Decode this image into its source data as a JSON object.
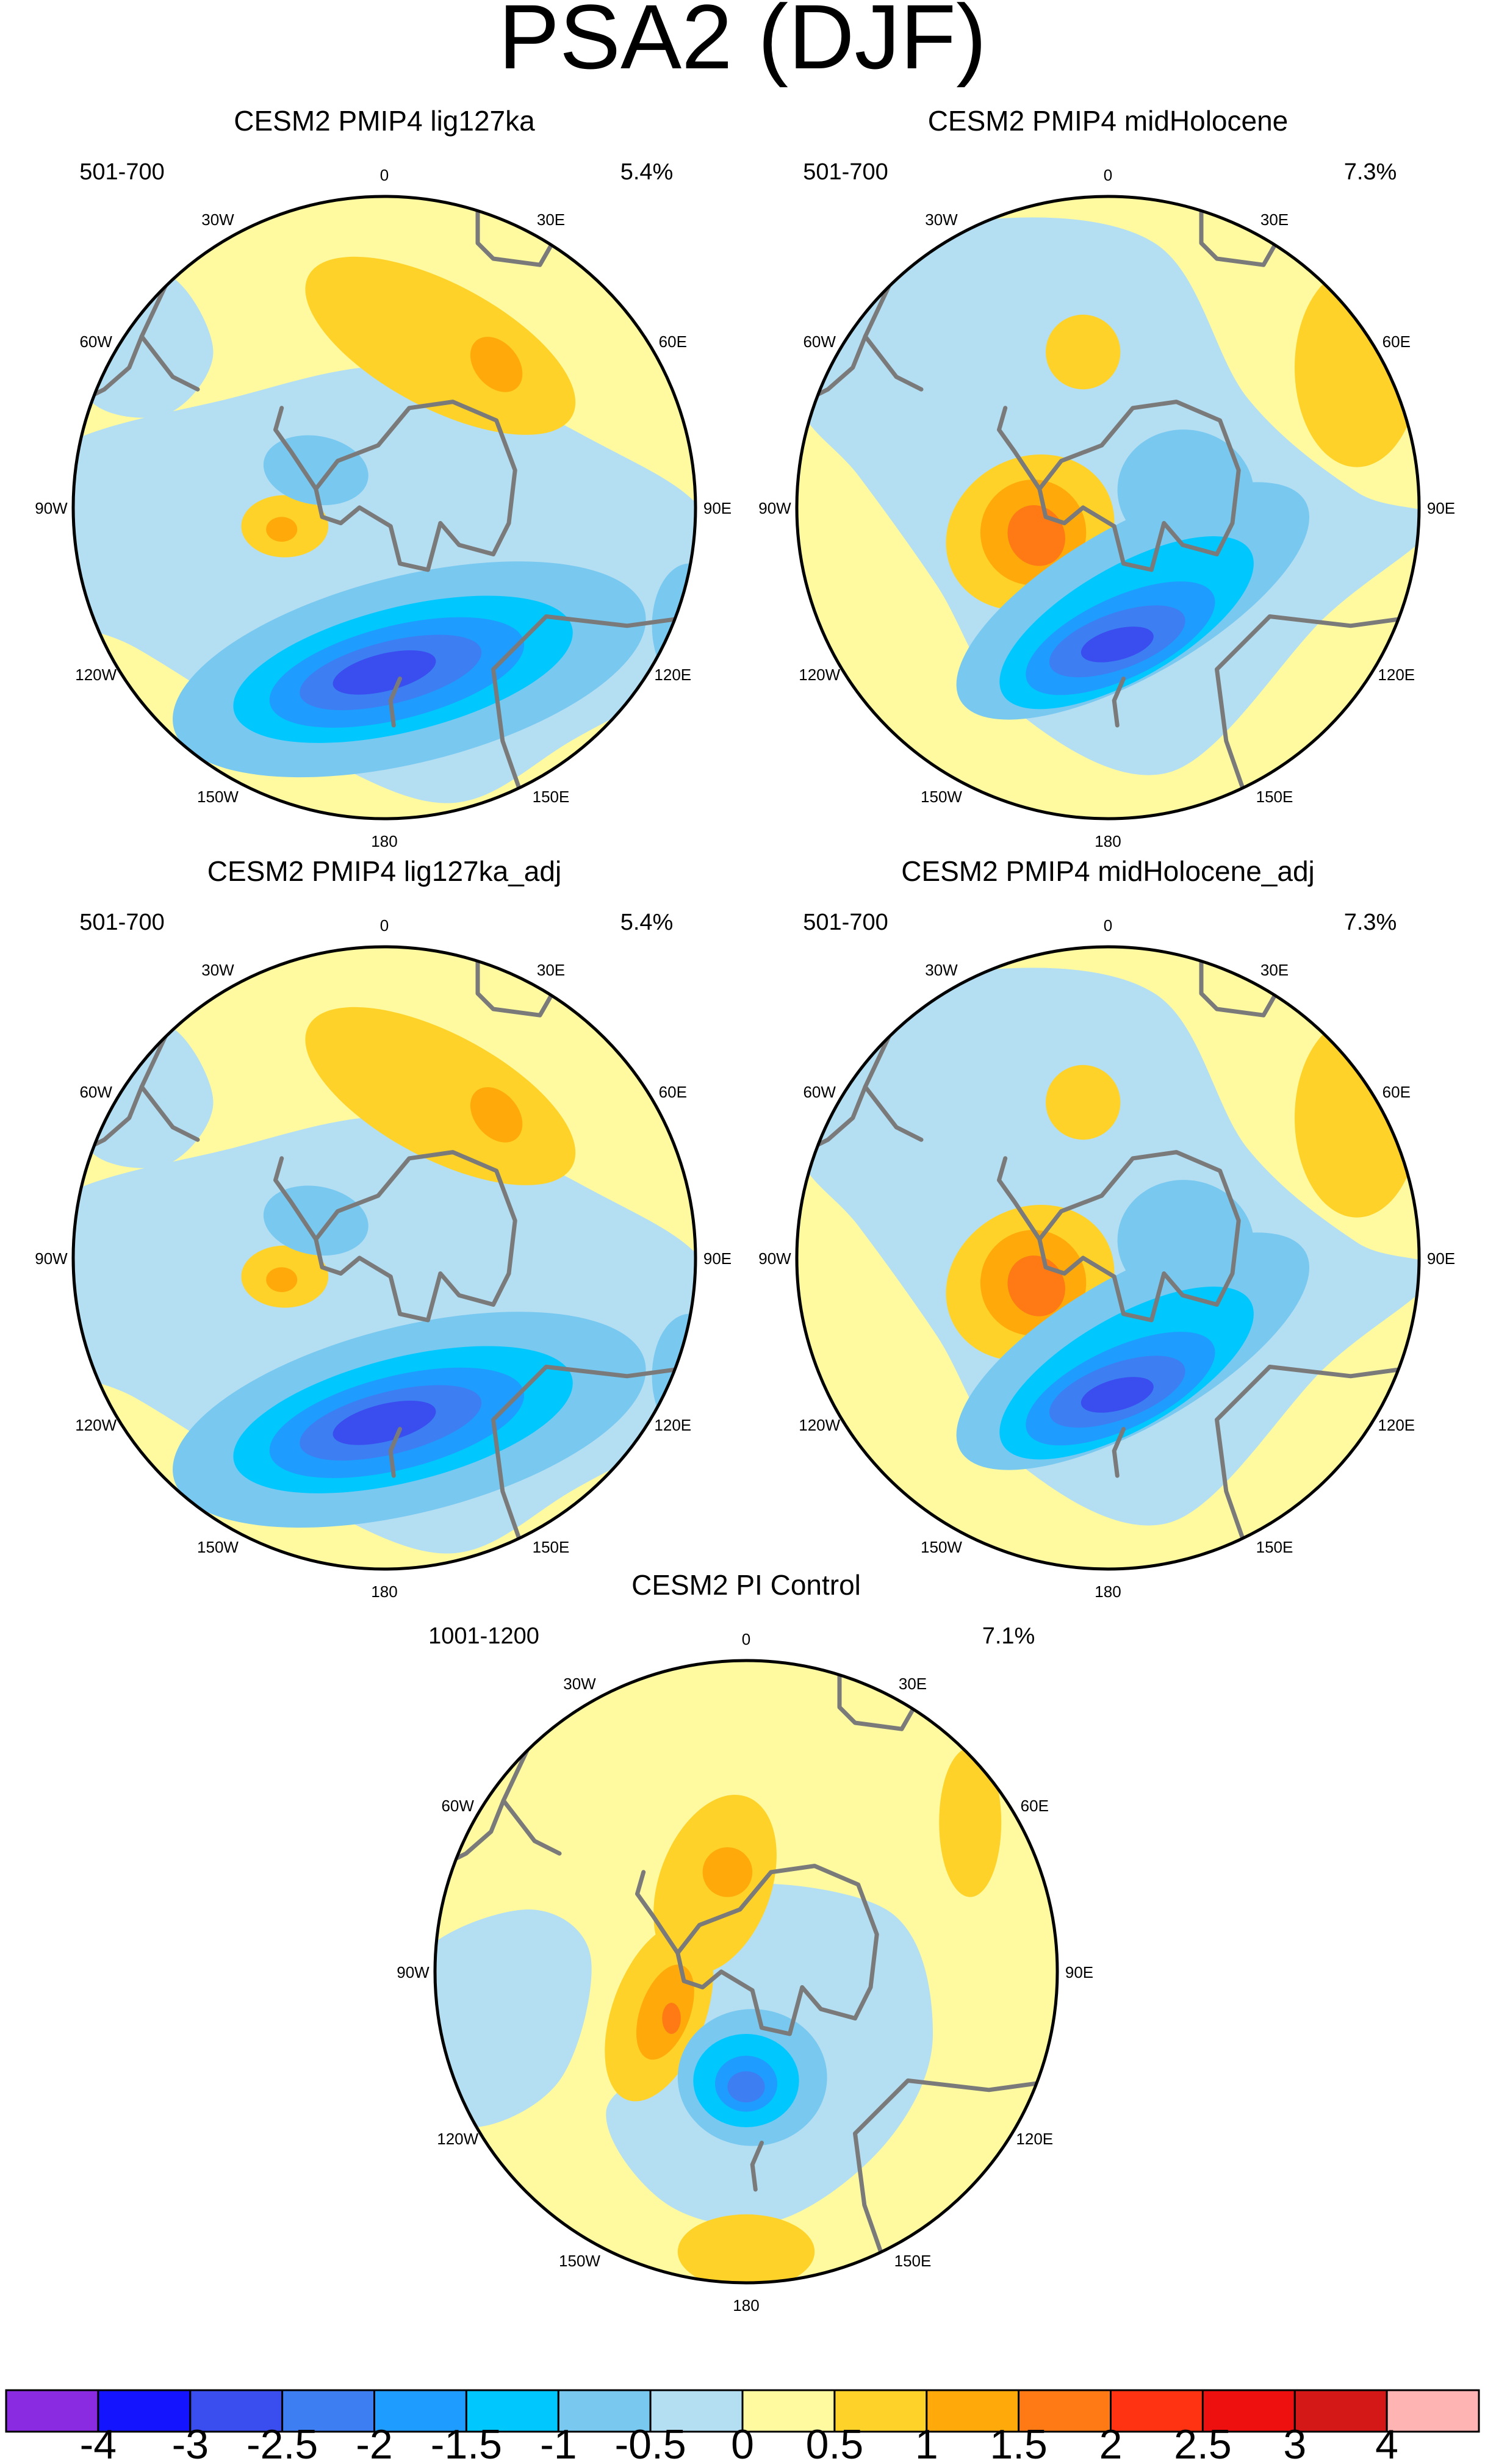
{
  "figure": {
    "title": "PSA2 (DJF)"
  },
  "palette": {
    "coast": "#7a7a7a",
    "colors": [
      "#8a2be2",
      "#1414ff",
      "#3a4ef0",
      "#3d7ef2",
      "#1e9cff",
      "#00c8ff",
      "#78c8f0",
      "#b4def2",
      "#fffaa0",
      "#ffd22a",
      "#ffaa0a",
      "#ff7a14",
      "#ff3212",
      "#ee0f0f",
      "#d41818",
      "#ffb4b4"
    ]
  },
  "colorbar": {
    "labels": [
      "-4",
      "-3",
      "-2.5",
      "-2",
      "-1.5",
      "-1",
      "-0.5",
      "0",
      "0.5",
      "1",
      "1.5",
      "2",
      "2.5",
      "3",
      "4"
    ]
  },
  "lon_labels": [
    "0",
    "30E",
    "60E",
    "90E",
    "120E",
    "150E",
    "180",
    "150W",
    "120W",
    "90W",
    "60W",
    "30W"
  ],
  "panels": [
    {
      "title": "CESM2 PMIP4 lig127ka",
      "years": "501-700",
      "pct": "5.4%",
      "pattern": "lig"
    },
    {
      "title": "CESM2 PMIP4 midHolocene",
      "years": "501-700",
      "pct": "7.3%",
      "pattern": "mh"
    },
    {
      "title": "CESM2 PMIP4 lig127ka_adj",
      "years": "501-700",
      "pct": "5.4%",
      "pattern": "lig"
    },
    {
      "title": "CESM2 PMIP4 midHolocene_adj",
      "years": "501-700",
      "pct": "7.3%",
      "pattern": "mh"
    },
    {
      "title": "CESM2 PI Control",
      "years": "1001-1200",
      "pct": "7.1%",
      "pattern": "pi"
    }
  ]
}
